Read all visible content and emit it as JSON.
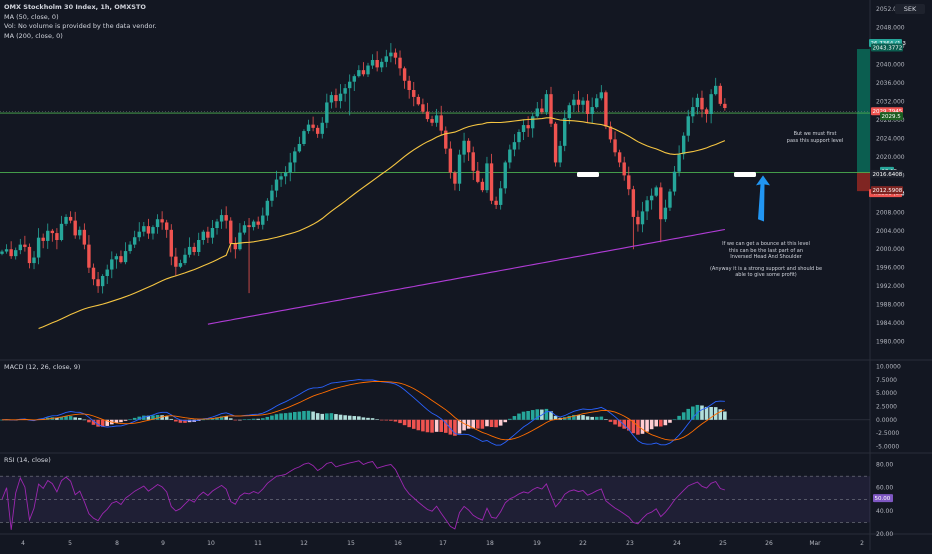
{
  "header": {
    "symbol_line": "OMX Stockholm 30 Index, 1h, OMXSTO",
    "ma50_line": "MA (50, close, 0)",
    "vol_line": "Vol: No volume is provided by the data vendor.",
    "ma200_line": "MA (200, close, 0)",
    "currency": "SEK"
  },
  "annotations": {
    "support_note": [
      "But we must first",
      "pass this support level"
    ],
    "bounce_note": [
      "If we can get a bounce at this level",
      "this can be the last part of an",
      "Inversed Head And Shoulder"
    ],
    "strong_support_note": [
      "(Anyway it is a strong support and should be",
      "able to give some profit)"
    ]
  },
  "colors": {
    "background": "#131722",
    "bull": "#26a69a",
    "bear": "#ef5350",
    "ma50": "#f5c542",
    "ma200": "#b03cd6",
    "macd_line": "#2962ff",
    "signal_line": "#ff6d00",
    "rsi_line": "#9c27b0",
    "support_line": "#4caf50",
    "arrow": "#2196f3",
    "target_zone": "#0b5e50",
    "stop_zone": "#7f2522"
  },
  "chart_data": [
    {
      "type": "candlestick",
      "title": "OMX Stockholm 30 Index, 1h, OMXSTO",
      "ylim": [
        1976,
        2054
      ],
      "y_ticks": [
        1980,
        1984,
        1988,
        1992,
        1996,
        2000,
        2004,
        2008,
        2012,
        2016,
        2020,
        2024,
        2028,
        2032,
        2036,
        2040,
        2044,
        2048,
        2052
      ],
      "x_tick_labels": [
        "4",
        "5",
        "8",
        "9",
        "10",
        "11",
        "12",
        "15",
        "16",
        "17",
        "18",
        "19",
        "22",
        "23",
        "24",
        "25",
        "26",
        "Mar",
        "2"
      ],
      "closes": [
        1999.5,
        2000.0,
        1998.5,
        1999.8,
        2001.0,
        2000.5,
        1997.0,
        1998.2,
        2002.5,
        2001.8,
        2004.0,
        2003.5,
        2002.0,
        2005.5,
        2007.0,
        2006.2,
        2003.0,
        2004.2,
        2001.0,
        1996.0,
        1993.5,
        1992.0,
        1994.2,
        1995.6,
        1997.8,
        1998.5,
        1997.2,
        1999.6,
        2001.0,
        2002.6,
        2003.8,
        2005.0,
        2003.4,
        2004.8,
        2006.5,
        2005.8,
        2004.2,
        1998.4,
        1996.2,
        1997.0,
        1998.8,
        2000.5,
        1999.4,
        2002.0,
        2003.8,
        2002.5,
        2004.6,
        2006.0,
        2007.4,
        2006.2,
        2001.2,
        2000.0,
        2003.6,
        2005.2,
        2004.8,
        2006.0,
        2005.3,
        2007.3,
        2010.5,
        2012.7,
        2015.1,
        2015.8,
        2016.6,
        2018.8,
        2021.2,
        2022.8,
        2025.6,
        2027.0,
        2026.3,
        2025.0,
        2027.4,
        2031.8,
        2033.4,
        2032.1,
        2033.7,
        2034.9,
        2036.3,
        2037.5,
        2038.8,
        2037.9,
        2039.8,
        2041.0,
        2039.4,
        2040.6,
        2041.8,
        2042.6,
        2041.5,
        2039.2,
        2036.5,
        2034.5,
        2033.0,
        2031.4,
        2029.8,
        2028.2,
        2027.4,
        2029.0,
        2025.7,
        2021.8,
        2016.6,
        2014.2,
        2020.5,
        2023.5,
        2021.0,
        2017.0,
        2014.6,
        2012.8,
        2018.6,
        2010.5,
        2009.6,
        2013.2,
        2018.8,
        2021.6,
        2023.2,
        2025.4,
        2026.9,
        2026.2,
        2028.8,
        2030.5,
        2029.7,
        2033.6,
        2027.2,
        2018.8,
        2022.4,
        2028.4,
        2031.2,
        2032.4,
        2031.3,
        2032.2,
        2029.3,
        2030.8,
        2032.7,
        2034.0,
        2026.6,
        2023.8,
        2021.0,
        2018.8,
        2016.0,
        2013.0,
        2007.0,
        2005.4,
        2008.2,
        2010.6,
        2011.6,
        2013.4,
        2006.5,
        2009.0,
        2012.5,
        2016.8,
        2020.6,
        2024.6,
        2028.8,
        2030.8,
        2032.8,
        2030.3,
        2029.3,
        2033.6,
        2035.4,
        2031.5,
        2030.6
      ],
      "series": [
        {
          "name": "MA (50, close, 0)",
          "values": []
        },
        {
          "name": "MA (200, close, 0)",
          "values": []
        }
      ],
      "levels": {
        "last_price": "2029.7945",
        "resistance": "2029.5",
        "support": "2016.6408",
        "target": "2043.3772",
        "target_delta": "26.7364 (1.3",
        "stop": "2012.5908",
        "stop_delta": "-4.0500 (0.2",
        "mid_label": "13.15"
      }
    },
    {
      "type": "macd",
      "title": "MACD (12, 26, close, 9)",
      "ylim": [
        -6.25,
        11.25
      ],
      "y_ticks": [
        -5.0,
        -2.5,
        0.0,
        2.5,
        5.0,
        7.5,
        10.0
      ],
      "y_tick_labels": [
        "-5.0000",
        "-2.5000",
        "0.0000",
        "2.5000",
        "5.0000",
        "7.5000",
        "10.0000"
      ]
    },
    {
      "type": "rsi",
      "title": "RSI (14, close)",
      "ylim": [
        20,
        90
      ],
      "bands": [
        30,
        70
      ],
      "y_ticks": [
        20,
        40,
        60,
        80
      ],
      "y_tick_labels": [
        "20.00",
        "40.00",
        "60.00",
        "80.00"
      ],
      "last_value": "50.00"
    }
  ]
}
